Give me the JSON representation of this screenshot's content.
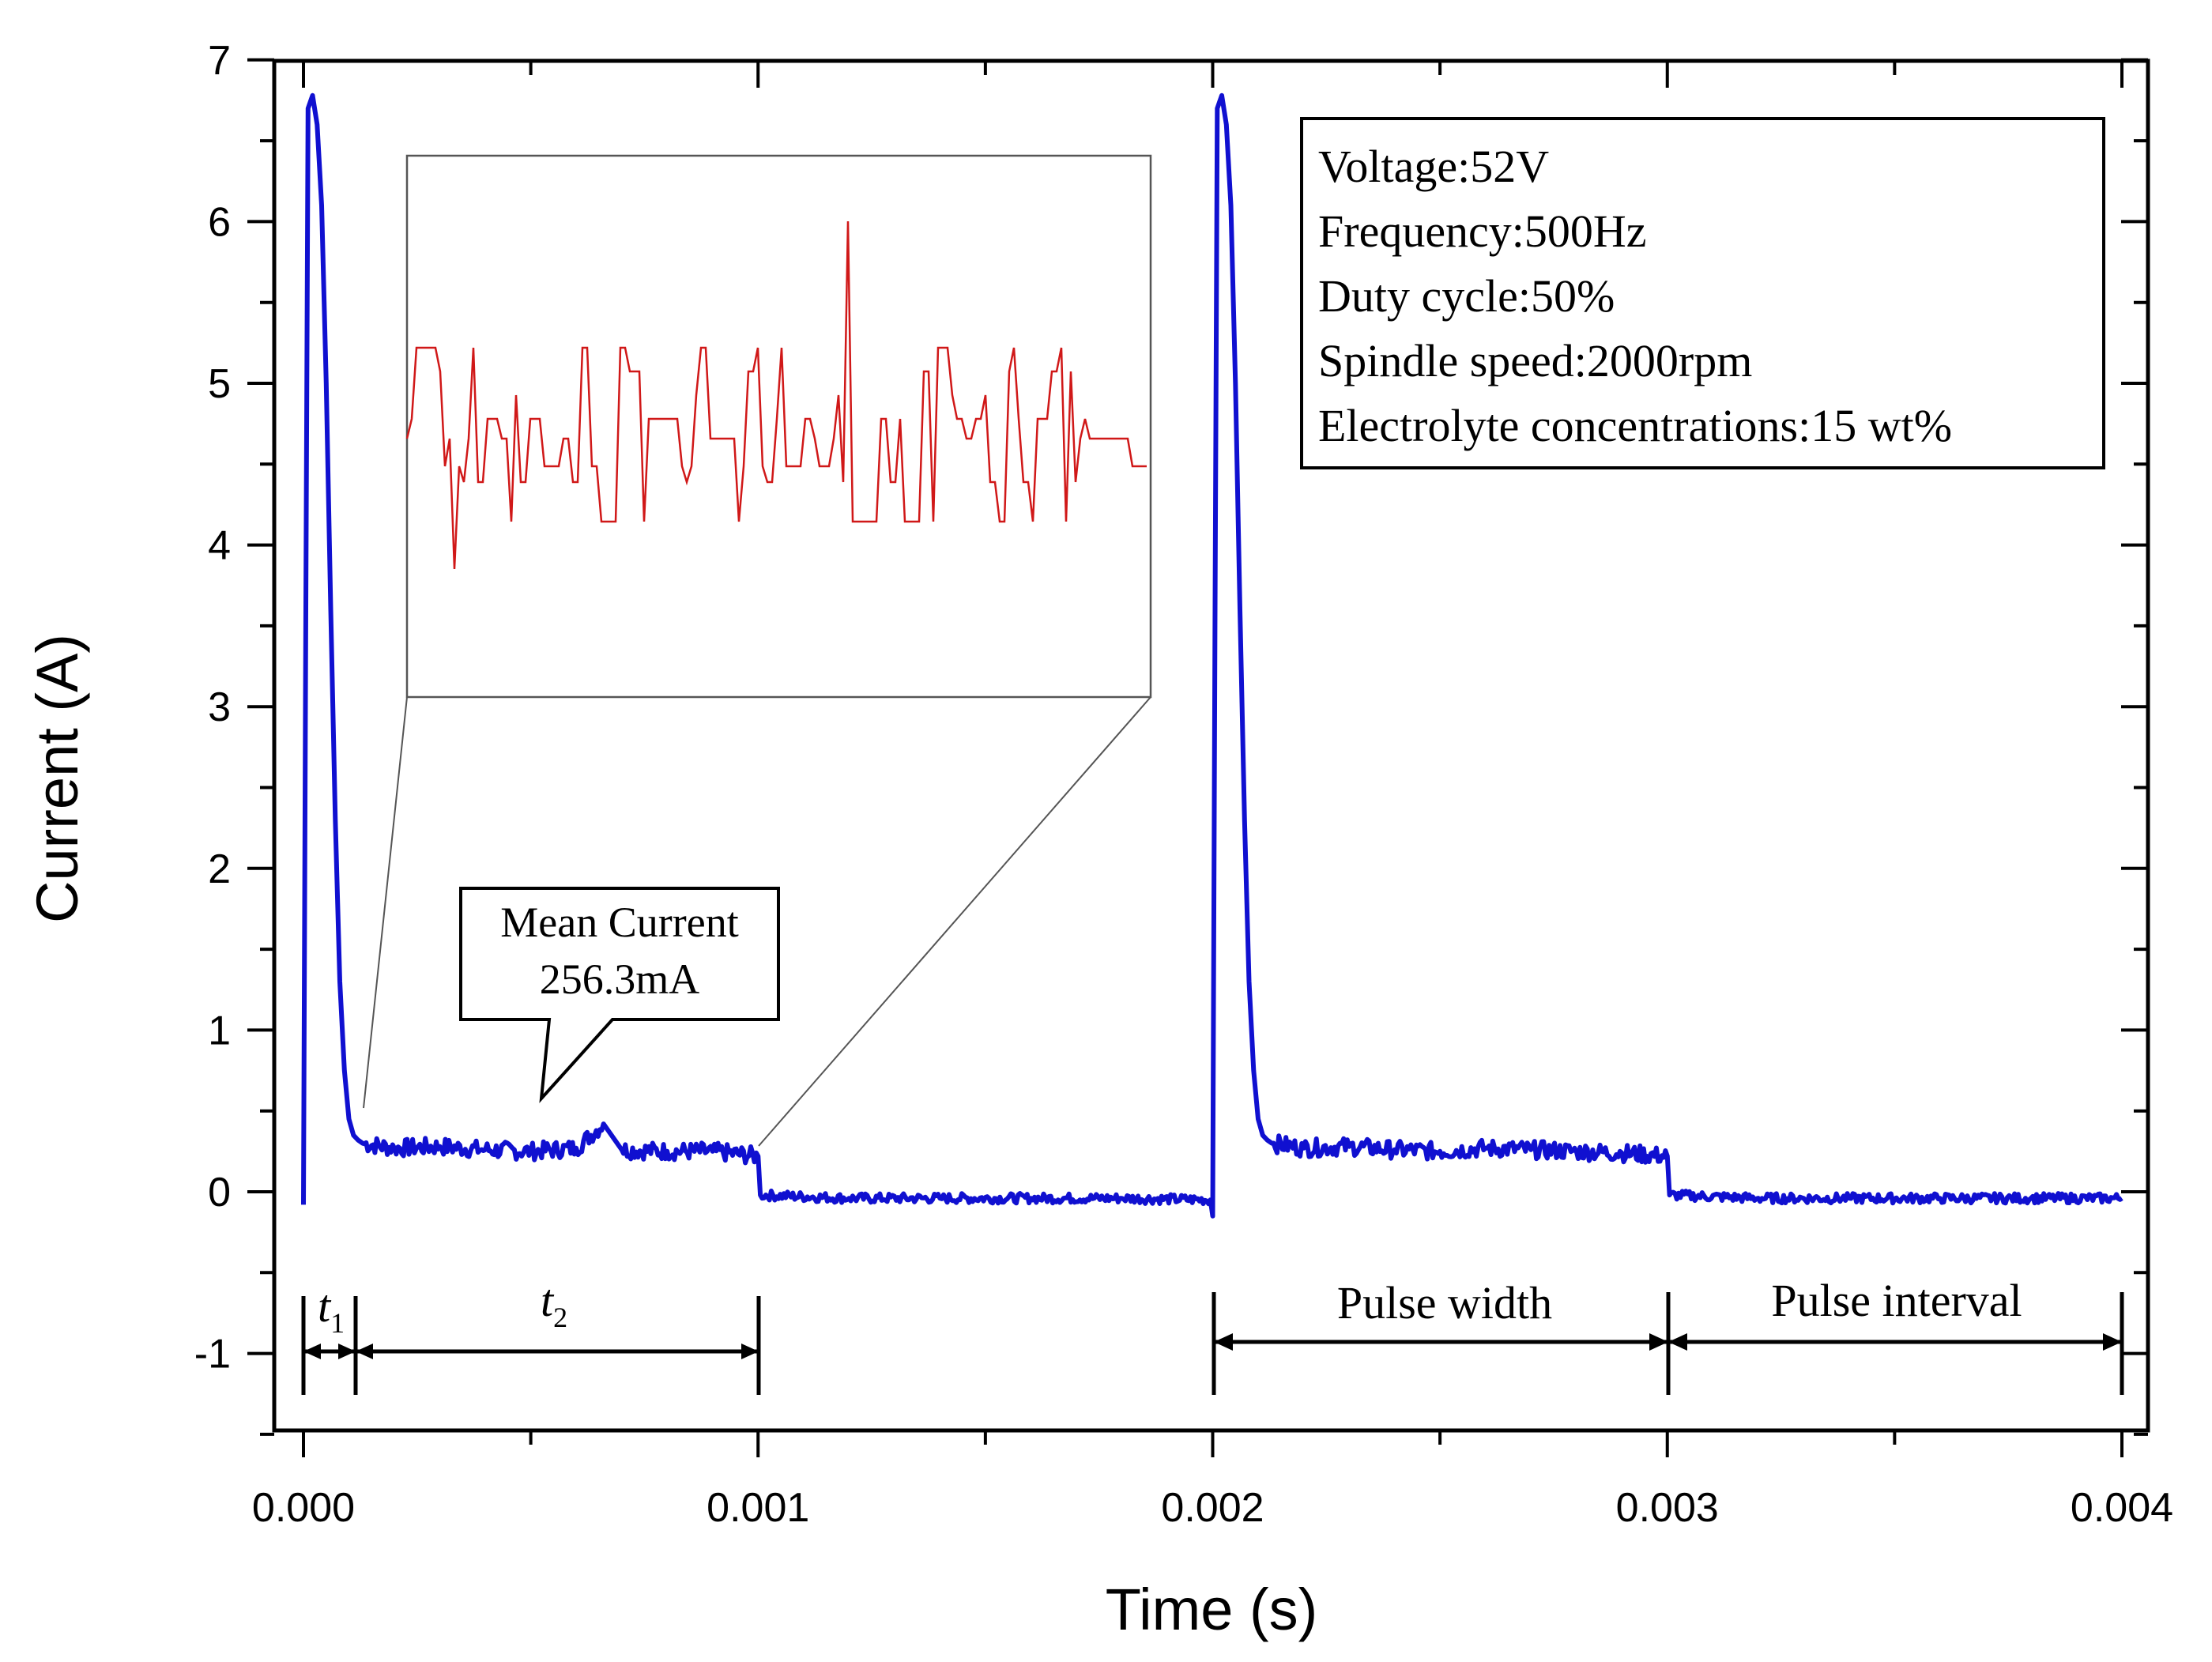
{
  "chart_data": {
    "type": "line",
    "xlabel": "Time (s)",
    "ylabel": "Current (A)",
    "xlim": [
      0,
      0.004
    ],
    "ylim": [
      -1.5,
      7
    ],
    "x_tick_labels": [
      "0.000",
      "0.001",
      "0.002",
      "0.003",
      "0.004"
    ],
    "y_tick_labels": [
      "-1",
      "0",
      "1",
      "2",
      "3",
      "4",
      "5",
      "6",
      "7"
    ],
    "grid": false,
    "series_color": "#1010d0",
    "inset_color": "#d01818",
    "series": [
      {
        "x": [
          0.0,
          5e-06,
          1e-05,
          2e-05,
          3e-05,
          4e-05,
          5e-05,
          6e-05,
          7e-05,
          8e-05,
          9e-05,
          0.0001,
          0.00011,
          0.00012,
          0.00013,
          0.0002,
          0.0003,
          0.0004,
          0.0005,
          0.0006,
          0.00066,
          0.0007,
          0.0008,
          0.0009,
          0.001,
          0.001005,
          0.0012,
          0.0014,
          0.0016,
          0.0018,
          0.001995,
          0.002,
          0.002005,
          0.00201,
          0.00202,
          0.00203,
          0.00204,
          0.00205,
          0.00206,
          0.00207,
          0.00208,
          0.00209,
          0.0021,
          0.00211,
          0.00212,
          0.00213,
          0.0022,
          0.0023,
          0.0024,
          0.0025,
          0.0026,
          0.0027,
          0.0028,
          0.0029,
          0.003,
          0.003005,
          0.0032,
          0.0034,
          0.0036,
          0.0038,
          0.004
        ],
        "y": [
          -0.08,
          3.5,
          6.7,
          6.78,
          6.6,
          6.1,
          5.0,
          3.6,
          2.3,
          1.3,
          0.75,
          0.45,
          0.35,
          0.32,
          0.3,
          0.27,
          0.28,
          0.26,
          0.25,
          0.27,
          0.42,
          0.26,
          0.25,
          0.25,
          0.22,
          -0.02,
          -0.04,
          -0.04,
          -0.04,
          -0.04,
          -0.05,
          -0.15,
          3.5,
          6.7,
          6.78,
          6.6,
          6.1,
          5.0,
          3.6,
          2.3,
          1.3,
          0.75,
          0.45,
          0.35,
          0.32,
          0.3,
          0.27,
          0.28,
          0.26,
          0.25,
          0.27,
          0.26,
          0.25,
          0.24,
          0.22,
          -0.02,
          -0.04,
          -0.04,
          -0.04,
          -0.04,
          -0.04
        ]
      }
    ],
    "info_box": [
      "Voltage:52V",
      "Frequency:500Hz",
      "Duty cycle:50%",
      "Spindle speed:2000rpm",
      "Electrolyte concentrations:15 wt%"
    ],
    "callout": [
      "Mean Current",
      "256.3mA"
    ],
    "annotations": {
      "t1": "t",
      "t1_sub": "1",
      "t2": "t",
      "t2_sub": "2",
      "pulse_width": "Pulse width",
      "pulse_interval": "Pulse interval"
    }
  }
}
